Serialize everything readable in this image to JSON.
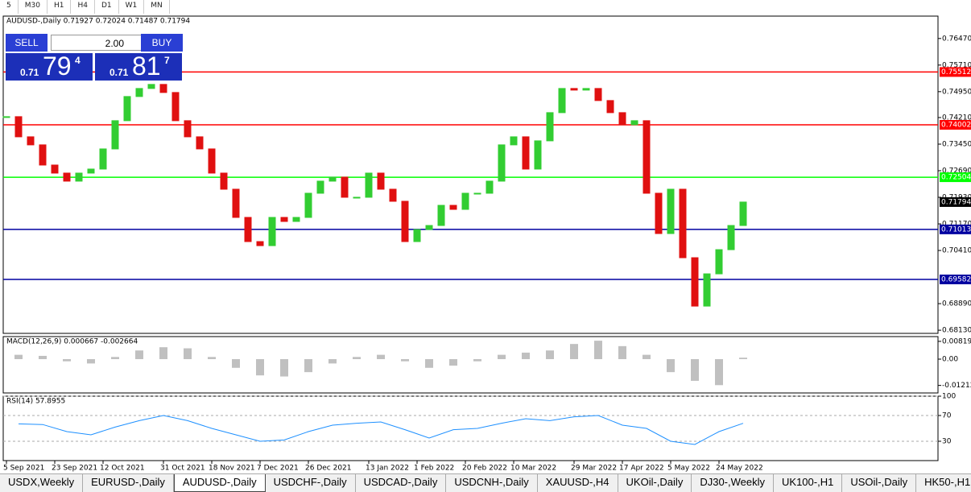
{
  "toolbar": {
    "timeframes": [
      "5",
      "M30",
      "H1",
      "H4",
      "D1",
      "W1",
      "MN"
    ]
  },
  "trade_panel": {
    "sell": "SELL",
    "lot": "2.00",
    "buy": "BUY",
    "bid_prefix": "0.71",
    "bid_big": "79",
    "bid_small": "4",
    "ask_prefix": "0.71",
    "ask_big": "81",
    "ask_small": "7"
  },
  "chart_data": [
    {
      "type": "candlestick",
      "title": "AUDUSD-,Daily 0.71927 0.72024 0.71487 0.71794",
      "categories": [
        "5 Sep 2021",
        null,
        null,
        null,
        "23 Sep 2021",
        null,
        null,
        null,
        "12 Oct 2021",
        null,
        null,
        null,
        null,
        "31 Oct 2021",
        null,
        null,
        null,
        "18 Nov 2021",
        null,
        null,
        null,
        "7 Dec 2021",
        null,
        null,
        null,
        "26 Dec 2021",
        null,
        null,
        null,
        null,
        "13 Jan 2022",
        null,
        null,
        null,
        "1 Feb 2022",
        null,
        null,
        null,
        "20 Feb 2022",
        null,
        null,
        null,
        "10 Mar 2022",
        null,
        null,
        null,
        null,
        "29 Mar 2022",
        null,
        null,
        null,
        "17 Apr 2022",
        null,
        null,
        null,
        "5 May 2022",
        null,
        null,
        null,
        "24 May 2022",
        null,
        null
      ],
      "values": [
        0.74235,
        0.73659,
        0.73429,
        0.72852,
        0.72622,
        0.72392,
        0.72622,
        0.72737,
        0.73313,
        0.7412,
        0.74811,
        0.75041,
        0.75157,
        0.74926,
        0.7412,
        0.73659,
        0.73313,
        0.72622,
        0.72161,
        0.71355,
        0.70664,
        0.70548,
        0.71355,
        0.7124,
        0.71355,
        0.72046,
        0.72392,
        0.72507,
        0.71931,
        0.71931,
        0.72622,
        0.72161,
        0.71816,
        0.70664,
        0.71009,
        0.71124,
        0.717,
        0.71585,
        0.72046,
        0.72046,
        0.72392,
        0.73429,
        0.73659,
        0.72737,
        0.73544,
        0.7435,
        0.75041,
        0.74995,
        0.75041,
        0.74696,
        0.7435,
        0.74005,
        0.7412,
        0.72046,
        0.70894,
        0.72161,
        0.70203,
        0.6882,
        0.69742,
        0.70433,
        0.71124,
        0.71794
      ],
      "up_color": "#32cd32",
      "down_color": "#e01010",
      "ylim": [
        0.6804,
        0.7711
      ],
      "yticks": [
        {
          "value": 0.7647,
          "label": "0.76470"
        },
        {
          "value": 0.7571,
          "label": "0.75710"
        },
        {
          "value": 0.7495,
          "label": "0.74950"
        },
        {
          "value": 0.7421,
          "label": "0.74210"
        },
        {
          "value": 0.7345,
          "label": "0.73450"
        },
        {
          "value": 0.7269,
          "label": "0.72690"
        },
        {
          "value": 0.7193,
          "label": "0.71930"
        },
        {
          "value": 0.7117,
          "label": "0.71170"
        },
        {
          "value": 0.7041,
          "label": "0.70410"
        },
        {
          "value": 0.6889,
          "label": "0.68890"
        },
        {
          "value": 0.6813,
          "label": "0.68130"
        }
      ],
      "levels": [
        {
          "value": 0.75512,
          "color": "#ff0000"
        },
        {
          "value": 0.74002,
          "color": "#ff0000"
        },
        {
          "value": 0.72504,
          "color": "#00ff00"
        },
        {
          "value": 0.71013,
          "color": "#0000a0"
        },
        {
          "value": 0.69582,
          "color": "#0000a0"
        }
      ],
      "last_price": 0.71794
    },
    {
      "type": "bar",
      "title": "MACD(12,26,9) 0.000667 -0.002664",
      "values": [
        0.002,
        0.0015,
        -0.001,
        -0.002,
        0.001,
        0.004,
        0.0055,
        0.005,
        0.001,
        -0.004,
        -0.0075,
        -0.008,
        -0.006,
        -0.002,
        0.001,
        0.002,
        -0.001,
        -0.004,
        -0.003,
        -0.001,
        0.002,
        0.003,
        0.004,
        0.007,
        0.0085,
        0.006,
        0.002,
        -0.006,
        -0.01,
        -0.012,
        0.000667
      ],
      "color": "#c0c0c0",
      "ylim": [
        -0.0156,
        0.0104
      ],
      "yticks": [
        0.008197,
        {
          "value": 0,
          "label": "0.00"
        },
        -0.01212
      ]
    },
    {
      "type": "line",
      "title": "RSI(14) 57.8955",
      "values": [
        57,
        56,
        45,
        40,
        52,
        62,
        70,
        62,
        50,
        40,
        30,
        32,
        45,
        55,
        58,
        60,
        48,
        35,
        48,
        50,
        58,
        65,
        62,
        68,
        70,
        55,
        50,
        30,
        25,
        45,
        57.8955
      ],
      "color": "#1e90ff",
      "ylim": [
        0,
        100
      ],
      "yticks": [
        100,
        70,
        30
      ]
    }
  ],
  "tabs": [
    "USDX,Weekly",
    "EURUSD-,Daily",
    "AUDUSD-,Daily",
    "USDCHF-,Daily",
    "USDCAD-,Daily",
    "USDCNH-,Daily",
    "XAUUSD-,H4",
    "UKOil-,Daily",
    "DJ30-,Weekly",
    "UK100-,H1",
    "USOil-,Daily",
    "HK50-,H1"
  ],
  "active_tab": 2
}
